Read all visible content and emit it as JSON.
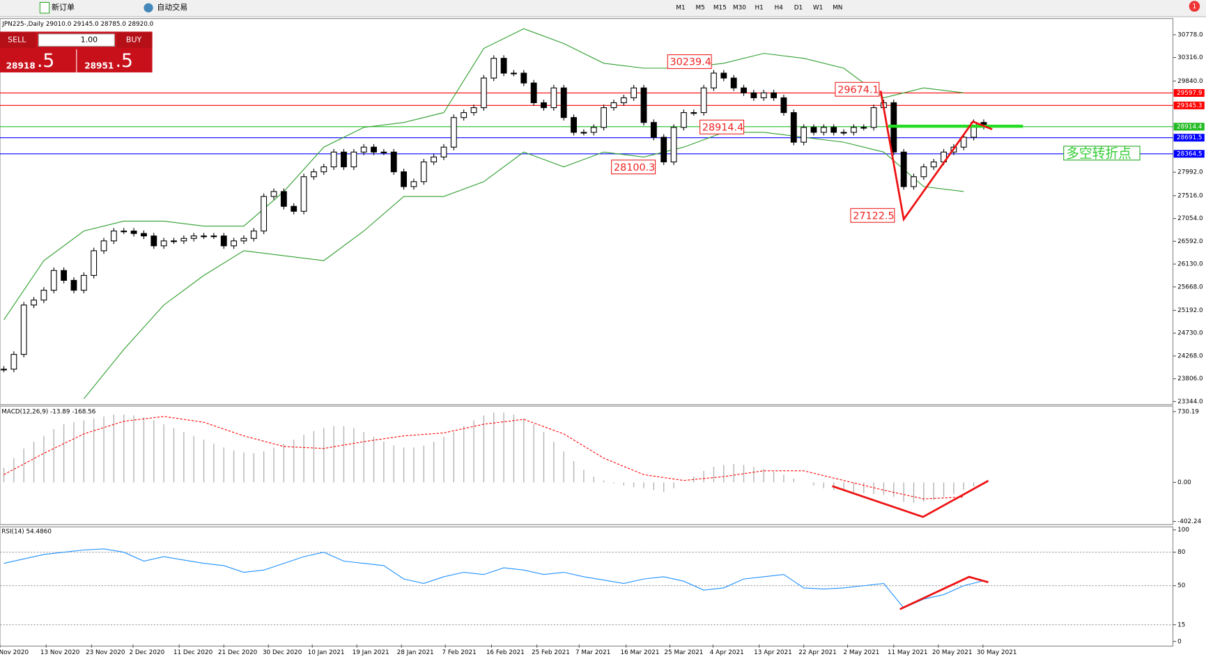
{
  "toolbar": {
    "new_order": "新订单",
    "auto_trading": "自动交易",
    "timeframes": [
      "M1",
      "M5",
      "M15",
      "M30",
      "H1",
      "H4",
      "D1",
      "W1",
      "MN"
    ],
    "badge": "1"
  },
  "trade_panel": {
    "sell": "SELL",
    "lot": "1.00",
    "buy": "BUY",
    "sell_big": "28918",
    "sell_small": ".5",
    "buy_big": "28951",
    "buy_small": ".5"
  },
  "chart_data": [
    {
      "type": "candlestick",
      "title": "JPN225-,Daily  29010.0 29145.0 28785.0 28920.0",
      "close": [
        24000,
        24300,
        25300,
        25400,
        25600,
        26000,
        25800,
        25600,
        25900,
        26400,
        26600,
        26800,
        26800,
        26750,
        26700,
        26500,
        26600,
        26600,
        26650,
        26700,
        26700,
        26700,
        26500,
        26600,
        26650,
        26800,
        27500,
        27600,
        27300,
        27200,
        27900,
        28000,
        28100,
        28400,
        28100,
        28400,
        28500,
        28400,
        28400,
        28000,
        27700,
        27800,
        28200,
        28300,
        28500,
        29100,
        29200,
        29300,
        29900,
        30300,
        30000,
        30000,
        29800,
        29400,
        29300,
        29700,
        29100,
        28800,
        28800,
        28900,
        29300,
        29400,
        29500,
        29700,
        29000,
        28700,
        28200,
        28900,
        29200,
        29200,
        29700,
        30000,
        29900,
        29700,
        29600,
        29500,
        29600,
        29500,
        29200,
        28600,
        28900,
        28800,
        28900,
        28800,
        28800,
        28900,
        28900,
        29300,
        29400,
        28400,
        27700,
        27900,
        28100,
        28200,
        28400,
        28500,
        28700,
        29000,
        28920
      ],
      "band_x": [
        0,
        4,
        8,
        12,
        16,
        20,
        24,
        28,
        32,
        36,
        40,
        44,
        48,
        52,
        56,
        60,
        64,
        68,
        72,
        76,
        80,
        84,
        88,
        92,
        96
      ],
      "upper_band": {
        "color": "#2e9e2e",
        "values": [
          25000,
          26200,
          26800,
          27000,
          27000,
          26900,
          26900,
          27600,
          28500,
          28900,
          29000,
          29200,
          30500,
          30900,
          30600,
          30200,
          30100,
          30100,
          30200,
          30400,
          30300,
          30100,
          29500,
          29700,
          29600
        ]
      },
      "lower_band": {
        "color": "#2e9e2e",
        "values": [
          null,
          null,
          23400,
          24400,
          25300,
          25900,
          26400,
          26300,
          26200,
          26800,
          27500,
          27500,
          27800,
          28400,
          28100,
          28400,
          28300,
          28500,
          28800,
          28800,
          28700,
          28600,
          28400,
          27700,
          27600
        ]
      },
      "ylim": [
        23297,
        31090
      ],
      "yticks": [
        {
          "value": 30778,
          "label": "30778.0"
        },
        {
          "value": 30316,
          "label": "30316.0"
        },
        {
          "value": 29840,
          "label": "29840.0"
        },
        {
          "value": 27992,
          "label": "27992.0"
        },
        {
          "value": 27516,
          "label": "27516.0"
        },
        {
          "value": 27054,
          "label": "27054.0"
        },
        {
          "value": 26592,
          "label": "26592.0"
        },
        {
          "value": 26130,
          "label": "26130.0"
        },
        {
          "value": 25668,
          "label": "25668.0"
        },
        {
          "value": 25192,
          "label": "25192.0"
        },
        {
          "value": 24730,
          "label": "24730.0"
        },
        {
          "value": 24268,
          "label": "24268.0"
        },
        {
          "value": 23806,
          "label": "23806.0"
        },
        {
          "value": 23344,
          "label": "23344.0"
        }
      ],
      "levels": [
        {
          "value": 29597.9,
          "label": "29597.9",
          "color": "#ff0000"
        },
        {
          "value": 29345.3,
          "label": "29345.3",
          "color": "#ff0000"
        },
        {
          "value": 28914.4,
          "label": "28914.4",
          "color": "#22bb22"
        },
        {
          "value": 28691.5,
          "label": "28691.5",
          "color": "#0000ff"
        },
        {
          "value": 28364.5,
          "label": "28364.5",
          "color": "#0000ff"
        }
      ],
      "annotations": [
        "30239.4",
        "29674.1",
        "28914.4",
        "28100.3",
        "27122.5",
        "多空转折点"
      ],
      "x_labels": [
        "Nov 2020",
        "13 Nov 2020",
        "23 Nov 2020",
        "2 Dec 2020",
        "11 Dec 2020",
        "21 Dec 2020",
        "30 Dec 2020",
        "10 Jan 2021",
        "19 Jan 2021",
        "28 Jan 2021",
        "7 Feb 2021",
        "16 Feb 2021",
        "25 Feb 2021",
        "7 Mar 2021",
        "16 Mar 2021",
        "25 Mar 2021",
        "4 Apr 2021",
        "13 Apr 2021",
        "22 Apr 2021",
        "2 May 2021",
        "11 May 2021",
        "20 May 2021",
        "30 May 2021"
      ]
    },
    {
      "type": "macd",
      "title": "MACD(12,26,9) -13.89 -168.56",
      "histogram": [
        150,
        250,
        350,
        420,
        480,
        550,
        600,
        620,
        640,
        660,
        680,
        700,
        700,
        690,
        670,
        640,
        600,
        560,
        520,
        480,
        440,
        400,
        360,
        330,
        310,
        300,
        320,
        360,
        400,
        440,
        490,
        530,
        560,
        580,
        580,
        560,
        520,
        470,
        420,
        380,
        360,
        360,
        380,
        420,
        470,
        520,
        580,
        640,
        690,
        720,
        720,
        700,
        660,
        600,
        520,
        420,
        320,
        220,
        130,
        60,
        20,
        -10,
        -30,
        -50,
        -60,
        -80,
        -100,
        -60,
        0,
        60,
        120,
        160,
        180,
        190,
        180,
        160,
        140,
        110,
        80,
        40,
        0,
        -30,
        -60,
        -80,
        -90,
        -100,
        -110,
        -120,
        -130,
        -150,
        -200,
        -210,
        -200,
        -180,
        -150,
        -120,
        -80,
        -40,
        -14
      ],
      "signal_x": [
        0,
        4,
        8,
        12,
        16,
        20,
        24,
        28,
        32,
        36,
        40,
        44,
        48,
        52,
        56,
        60,
        64,
        68,
        72,
        76,
        80,
        84,
        88,
        92,
        96
      ],
      "signal": {
        "color": "#ff0000",
        "values": [
          80,
          300,
          500,
          630,
          680,
          620,
          480,
          370,
          350,
          420,
          480,
          510,
          600,
          650,
          500,
          250,
          80,
          20,
          60,
          120,
          120,
          20,
          -80,
          -170,
          -150
        ]
      },
      "ylim": [
        -435,
        786
      ],
      "yticks": [
        {
          "value": 730.19,
          "label": "730.19"
        },
        {
          "value": 0,
          "label": "0.00"
        },
        {
          "value": -402.24,
          "label": "-402.24"
        }
      ]
    },
    {
      "type": "rsi",
      "title": "RSI(14) 54.4860",
      "color": "#1e90ff",
      "x": [
        0,
        2,
        4,
        6,
        8,
        10,
        12,
        14,
        16,
        18,
        20,
        22,
        24,
        26,
        28,
        30,
        32,
        34,
        36,
        38,
        40,
        42,
        44,
        46,
        48,
        50,
        52,
        54,
        56,
        58,
        60,
        62,
        64,
        66,
        68,
        70,
        72,
        74,
        76,
        78,
        80,
        82,
        84,
        86,
        88,
        90,
        92,
        94,
        96,
        98
      ],
      "values": [
        70,
        74,
        78,
        80,
        82,
        83,
        80,
        72,
        76,
        73,
        70,
        68,
        62,
        64,
        70,
        76,
        80,
        72,
        70,
        68,
        56,
        52,
        58,
        62,
        60,
        66,
        64,
        60,
        62,
        58,
        55,
        52,
        56,
        58,
        54,
        46,
        48,
        56,
        58,
        60,
        48,
        47,
        48,
        50,
        52,
        30,
        38,
        42,
        50,
        54.5
      ],
      "ylim": [
        -2.8,
        102
      ],
      "yticks": [
        100,
        80,
        50,
        15,
        0
      ]
    }
  ]
}
